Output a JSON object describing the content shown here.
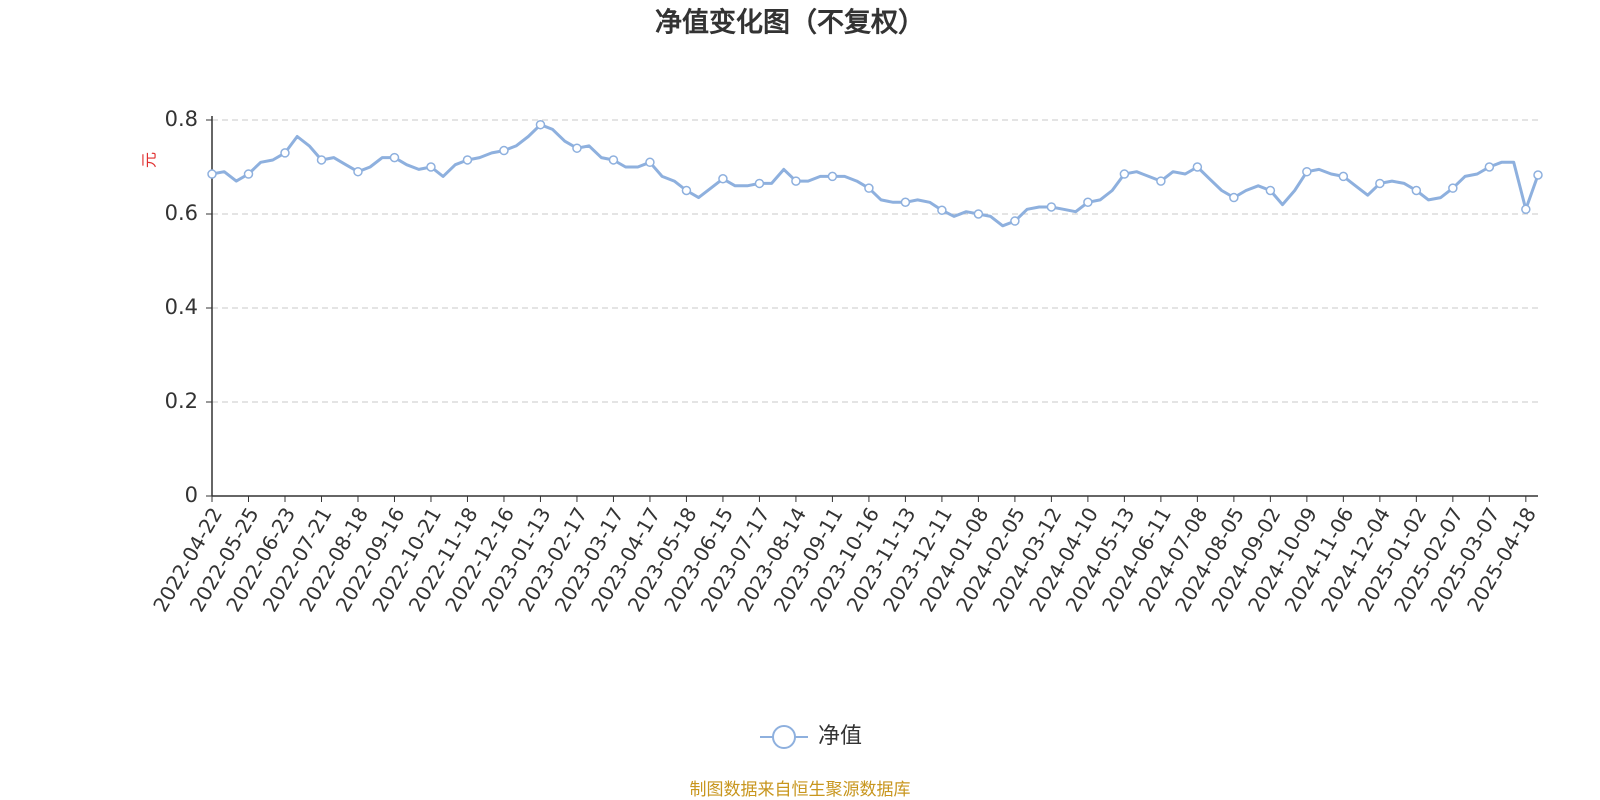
{
  "chart_data": {
    "type": "line",
    "title": "净值变化图（不复权）",
    "y_label": "元",
    "source": "制图数据来自恒生聚源数据库",
    "categories": [
      "2022-04-22",
      null,
      null,
      "2022-05-25",
      null,
      null,
      "2022-06-23",
      null,
      null,
      "2022-07-21",
      null,
      null,
      "2022-08-18",
      null,
      null,
      "2022-09-16",
      null,
      null,
      "2022-10-21",
      null,
      null,
      "2022-11-18",
      null,
      null,
      "2022-12-16",
      null,
      null,
      "2023-01-13",
      null,
      null,
      "2023-02-17",
      null,
      null,
      "2023-03-17",
      null,
      null,
      "2023-04-17",
      null,
      null,
      "2023-05-18",
      null,
      null,
      "2023-06-15",
      null,
      null,
      "2023-07-17",
      null,
      null,
      "2023-08-14",
      null,
      null,
      "2023-09-11",
      null,
      null,
      "2023-10-16",
      null,
      null,
      "2023-11-13",
      null,
      null,
      "2023-12-11",
      null,
      null,
      "2024-01-08",
      null,
      null,
      "2024-02-05",
      null,
      null,
      "2024-03-12",
      null,
      null,
      "2024-04-10",
      null,
      null,
      "2024-05-13",
      null,
      null,
      "2024-06-11",
      null,
      null,
      "2024-07-08",
      null,
      null,
      "2024-08-05",
      null,
      null,
      "2024-09-02",
      null,
      null,
      "2024-10-09",
      null,
      null,
      "2024-11-06",
      null,
      null,
      "2024-12-04",
      null,
      null,
      "2025-01-02",
      null,
      null,
      "2025-02-07",
      null,
      null,
      "2025-03-07",
      null,
      null,
      "2025-04-18",
      null
    ],
    "series": [
      {
        "name": "净值",
        "color": "#8eb0de",
        "values": [
          0.685,
          0.69,
          0.67,
          0.685,
          0.71,
          0.715,
          0.73,
          0.765,
          0.745,
          0.715,
          0.72,
          0.705,
          0.69,
          0.7,
          0.72,
          0.72,
          0.705,
          0.695,
          0.7,
          0.68,
          0.705,
          0.715,
          0.72,
          0.73,
          0.735,
          0.745,
          0.765,
          0.79,
          0.78,
          0.755,
          0.74,
          0.745,
          0.72,
          0.715,
          0.7,
          0.7,
          0.71,
          0.68,
          0.67,
          0.65,
          0.635,
          0.655,
          0.675,
          0.66,
          0.66,
          0.665,
          0.665,
          0.695,
          0.67,
          0.67,
          0.68,
          0.68,
          0.68,
          0.67,
          0.655,
          0.63,
          0.625,
          0.625,
          0.63,
          0.625,
          0.608,
          0.595,
          0.605,
          0.6,
          0.595,
          0.575,
          0.585,
          0.61,
          0.615,
          0.615,
          0.61,
          0.605,
          0.625,
          0.63,
          0.65,
          0.685,
          0.69,
          0.68,
          0.67,
          0.69,
          0.685,
          0.7,
          0.675,
          0.65,
          0.635,
          0.65,
          0.66,
          0.65,
          0.62,
          0.65,
          0.69,
          0.695,
          0.685,
          0.68,
          0.66,
          0.64,
          0.665,
          0.67,
          0.665,
          0.65,
          0.63,
          0.635,
          0.655,
          0.68,
          0.685,
          0.7,
          0.71,
          0.71,
          0.61,
          0.683
        ]
      }
    ],
    "ylim": [
      0,
      0.8
    ],
    "yticks": [
      0,
      0.2,
      0.4,
      0.6,
      0.8
    ],
    "grid": true,
    "legend": "bottom"
  }
}
